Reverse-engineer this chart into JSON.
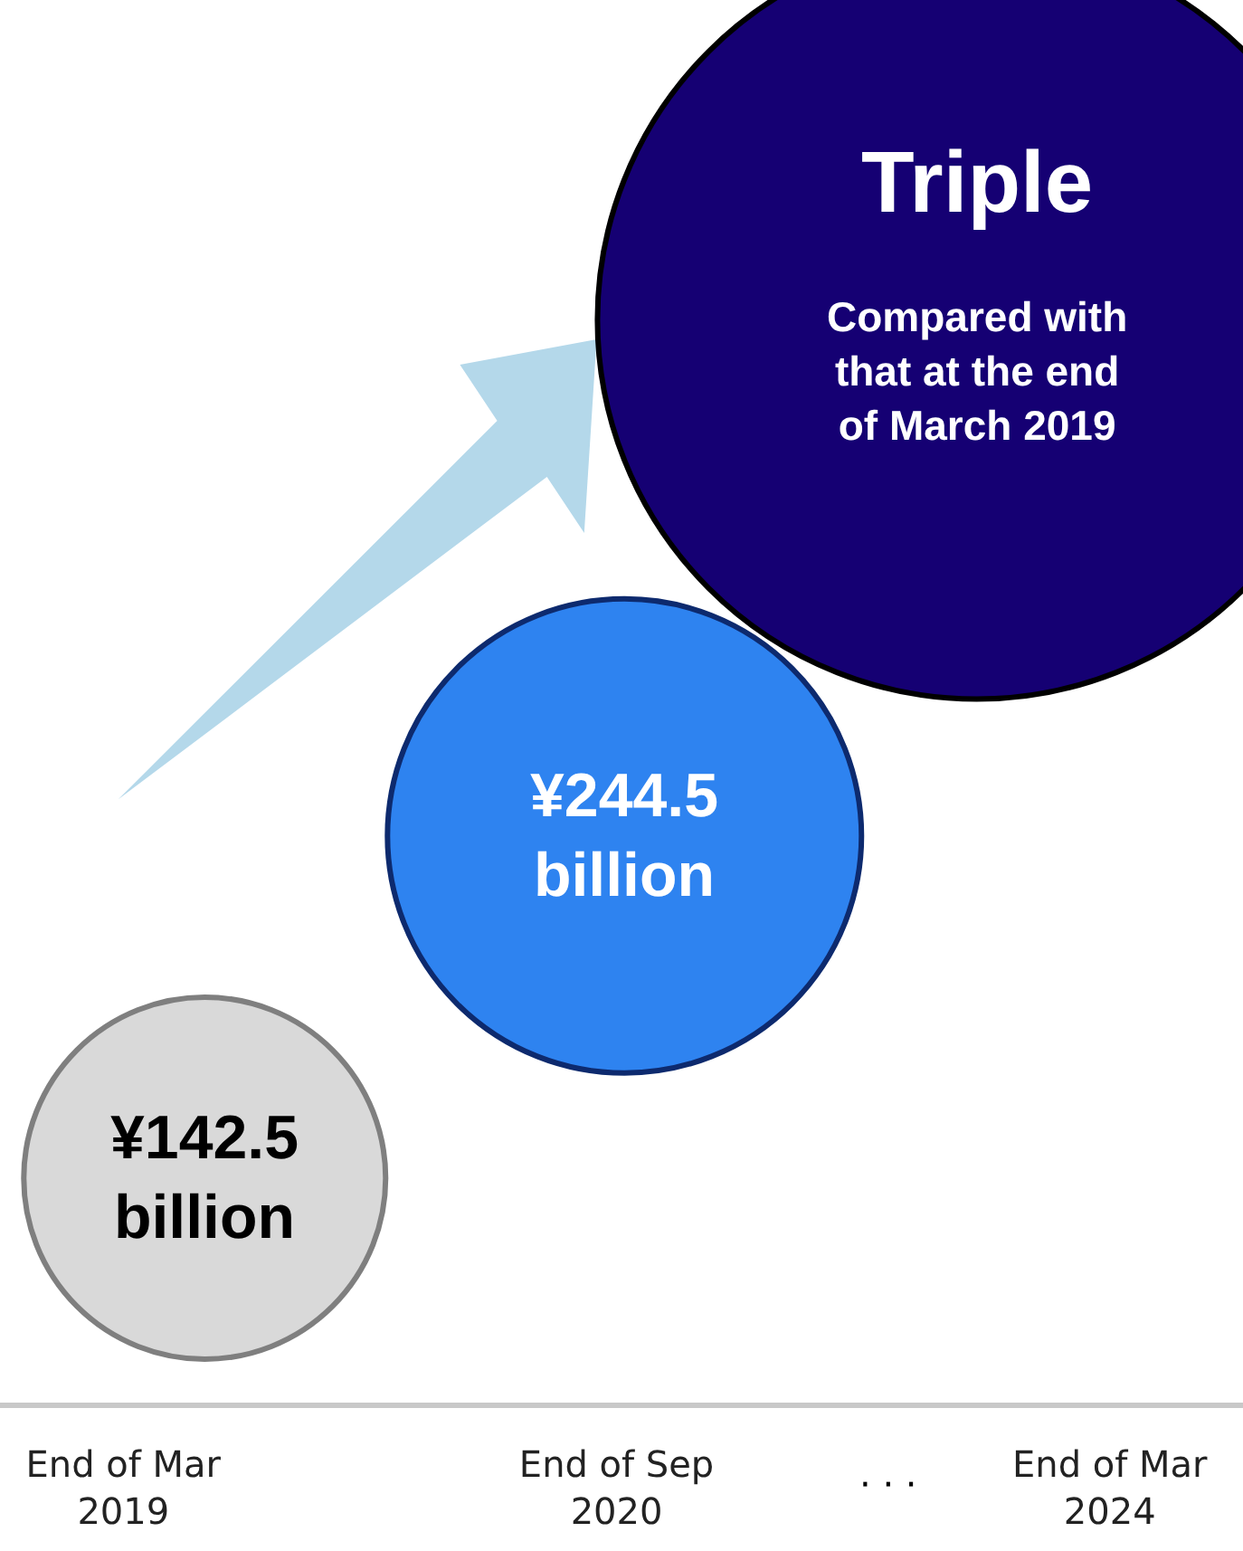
{
  "chart_data": {
    "type": "other",
    "categories": [
      "End of Mar\n2019",
      "End of Sep\n2020",
      "End of Mar\n2024"
    ],
    "values": [
      142500000000,
      244500000000,
      null
    ],
    "colors": [
      "#d9d9d9",
      "#2e83f0",
      "#150073"
    ],
    "value_labels": [
      "¥142.5\nbillion",
      "¥244.5\nbillion",
      "Triple"
    ],
    "annotations": [
      "Compared with\nthat at the end\nof March 2019",
      "· · ·"
    ]
  }
}
